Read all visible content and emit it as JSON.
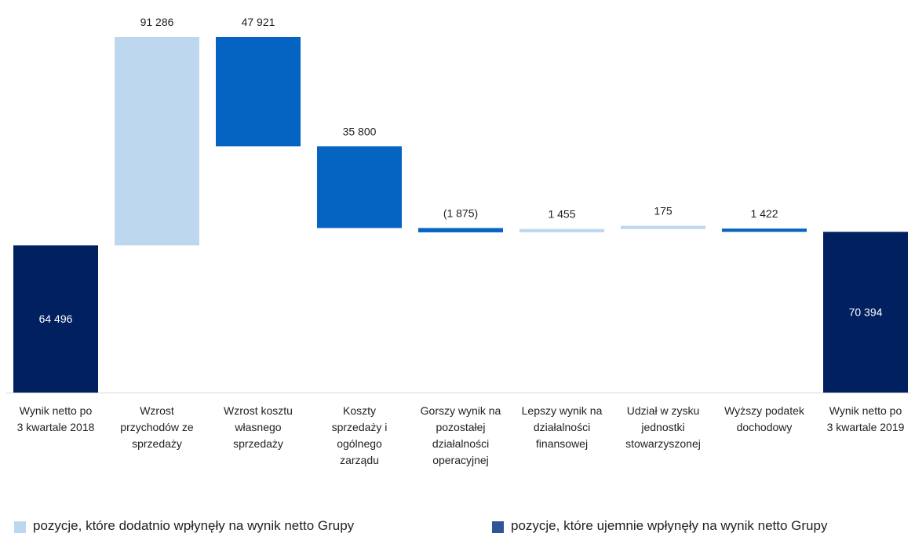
{
  "chart_data": {
    "type": "waterfall",
    "categories": [
      "Wynik netto po 3 kwartale 2018",
      "Wzrost przychodów ze sprzedaży",
      "Wzrost kosztu własnego sprzedaży",
      "Koszty sprzedaży i ogólnego zarządu",
      "Gorszy wynik na pozostałej działalności operacyjnej",
      "Lepszy wynik na działalności finansowej",
      "Udział w zysku jednostki stowarzyszonej",
      "Wyższy podatek dochodowy",
      "Wynik netto po 3 kwartale 2019"
    ],
    "category_lines": [
      [
        "Wynik netto po",
        "3 kwartale 2018"
      ],
      [
        "Wzrost",
        "przychodów ze",
        "sprzedaży"
      ],
      [
        "Wzrost kosztu",
        "własnego",
        "sprzedaży"
      ],
      [
        "Koszty",
        "sprzedaży i",
        "ogólnego",
        "zarządu"
      ],
      [
        "Gorszy wynik na",
        "pozostałej",
        "działalności",
        "operacyjnej"
      ],
      [
        "Lepszy wynik na",
        "działalności",
        "finansowej"
      ],
      [
        "Udział w zysku",
        "jednostki",
        "stowarzyszonej"
      ],
      [
        "Wyższy podatek",
        "dochodowy"
      ],
      [
        "Wynik netto po",
        "3 kwartale 2019"
      ]
    ],
    "bars": [
      {
        "kind": "total",
        "start": 0,
        "end": 64496,
        "label": "64 496"
      },
      {
        "kind": "positive",
        "start": 64496,
        "end": 155782,
        "label": "91 286"
      },
      {
        "kind": "negative",
        "start": 155782,
        "end": 107861,
        "label": "47 921"
      },
      {
        "kind": "negative",
        "start": 107861,
        "end": 72061,
        "label": "35 800"
      },
      {
        "kind": "negative",
        "start": 72061,
        "end": 70186,
        "label": "(1 875)"
      },
      {
        "kind": "positive",
        "start": 70186,
        "end": 71641,
        "label": "1 455"
      },
      {
        "kind": "positive",
        "start": 71641,
        "end": 71816,
        "label": "175"
      },
      {
        "kind": "negative",
        "start": 71816,
        "end": 70394,
        "label": "1 422"
      },
      {
        "kind": "total",
        "start": 0,
        "end": 70394,
        "label": "70 394"
      }
    ],
    "ylim": [
      0,
      155782
    ],
    "colors": {
      "total": "#002060",
      "positive": "#bdd7ee",
      "negative": "#0563c1"
    },
    "legend": [
      {
        "label": "pozycje, które dodatnio wpłynęły na wynik netto Grupy",
        "color": "#bdd7ee"
      },
      {
        "label": "pozycje, które ujemnie wpłynęły na wynik netto Grupy",
        "color": "#2f5597"
      }
    ],
    "grid": false,
    "legend_position": "bottom"
  }
}
